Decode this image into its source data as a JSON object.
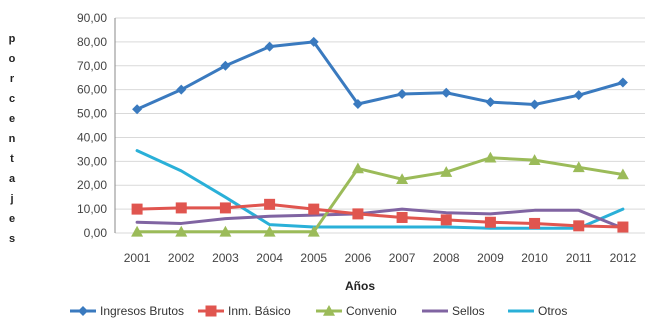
{
  "chart_data": {
    "type": "line",
    "title": "",
    "xlabel": "Años",
    "ylabel": "porcentajes",
    "categories": [
      "2001",
      "2002",
      "2003",
      "2004",
      "2005",
      "2006",
      "2007",
      "2008",
      "2009",
      "2010",
      "2011",
      "2012"
    ],
    "ylim": [
      0,
      90
    ],
    "yticks": [
      0,
      10,
      20,
      30,
      40,
      50,
      60,
      70,
      80,
      90
    ],
    "ytick_labels": [
      "0,00",
      "10,00",
      "20,00",
      "30,00",
      "40,00",
      "50,00",
      "60,00",
      "70,00",
      "80,00",
      "90,00"
    ],
    "grid": true,
    "legend_position": "bottom",
    "series": [
      {
        "name": "Ingresos Brutos",
        "color": "#3a7abf",
        "marker": "diamond",
        "values": [
          51.8,
          60.0,
          70.0,
          78.0,
          80.0,
          54.0,
          58.2,
          58.7,
          54.8,
          53.8,
          57.7,
          63.0
        ]
      },
      {
        "name": "Inm. Básico",
        "color": "#e0554f",
        "marker": "square",
        "values": [
          10.0,
          10.5,
          10.5,
          12.0,
          10.0,
          8.0,
          6.5,
          5.5,
          4.5,
          4.0,
          3.0,
          2.5
        ]
      },
      {
        "name": "Convenio",
        "color": "#9bbb59",
        "marker": "triangle",
        "values": [
          0.5,
          0.5,
          0.5,
          0.5,
          0.5,
          27.0,
          22.5,
          25.5,
          31.5,
          30.5,
          27.5,
          24.5
        ]
      },
      {
        "name": "Sellos",
        "color": "#8064a2",
        "marker": "none",
        "values": [
          4.5,
          4.0,
          6.0,
          7.0,
          7.5,
          8.0,
          10.0,
          8.5,
          8.0,
          9.5,
          9.5,
          2.0
        ]
      },
      {
        "name": "Otros",
        "color": "#2ab0d8",
        "marker": "none",
        "values": [
          34.5,
          26.0,
          15.0,
          3.5,
          2.5,
          2.5,
          2.5,
          2.5,
          2.0,
          2.0,
          2.0,
          10.0
        ]
      }
    ]
  }
}
